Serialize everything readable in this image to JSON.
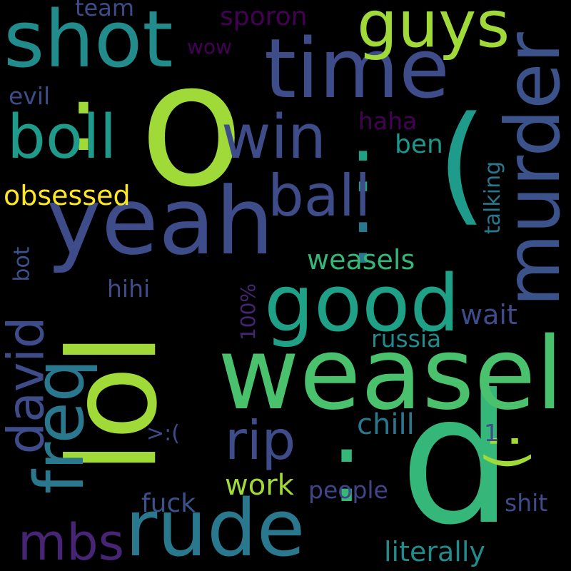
{
  "background": "#000000",
  "words": [
    {
      "id": "o",
      "text": "o",
      "color": "#a0da39"
    },
    {
      "id": "d",
      "text": "d",
      "color": "#35b779"
    },
    {
      "id": "lol",
      "text": "lol",
      "color": "#a0da39"
    },
    {
      "id": "weasel",
      "text": "weasel",
      "color": "#4ac16d"
    },
    {
      "id": "yeah",
      "text": "yeah",
      "color": "#3e4c8a"
    },
    {
      "id": "time",
      "text": "time",
      "color": "#3e4c8a"
    },
    {
      "id": "shot",
      "text": "shot",
      "color": "#228c8d"
    },
    {
      "id": "good",
      "text": "good",
      "color": "#1fa187"
    },
    {
      "id": "rude",
      "text": "rude",
      "color": "#2a788e"
    },
    {
      "id": "murder",
      "text": "murder",
      "color": "#3b528b"
    },
    {
      "id": "paren",
      "text": "(",
      "color": "#1e9b8a"
    },
    {
      "id": "colon1",
      "text": ":",
      "color": "#a0da39"
    },
    {
      "id": "colon2",
      "text": ":",
      "color": "#1fa187"
    },
    {
      "id": "colon3",
      "text": ":",
      "color": "#2a788e"
    },
    {
      "id": "colon4",
      "text": ":",
      "color": "#35b779"
    },
    {
      "id": "guys",
      "text": "guys",
      "color": "#a0da39"
    },
    {
      "id": "win",
      "text": "win",
      "color": "#3e4c8a"
    },
    {
      "id": "boll",
      "text": "boll",
      "color": "#1e9b8a"
    },
    {
      "id": "ball",
      "text": "ball",
      "color": "#3e4c8a"
    },
    {
      "id": "freq",
      "text": "freq",
      "color": "#2a788e"
    },
    {
      "id": "david",
      "text": "david",
      "color": "#3e4c8a"
    },
    {
      "id": "rip",
      "text": "rip",
      "color": "#3e4c8a"
    },
    {
      "id": "smile",
      "text": ":)",
      "color": "#a0da39"
    },
    {
      "id": "mbs",
      "text": "mbs",
      "color": "#482475"
    },
    {
      "id": "obsessed",
      "text": "obsessed",
      "color": "#fde725"
    },
    {
      "id": "weasels",
      "text": "weasels",
      "color": "#35b779"
    },
    {
      "id": "wait",
      "text": "wait",
      "color": "#3e4c8a"
    },
    {
      "id": "russia",
      "text": "russia",
      "color": "#228c8d"
    },
    {
      "id": "chill",
      "text": "chill",
      "color": "#2a788e"
    },
    {
      "id": "work",
      "text": "work",
      "color": "#a0da39"
    },
    {
      "id": "people",
      "text": "people",
      "color": "#414487"
    },
    {
      "id": "fuck",
      "text": "fuck",
      "color": "#3b528b"
    },
    {
      "id": "shit",
      "text": "shit",
      "color": "#3e4c8a"
    },
    {
      "id": "literally",
      "text": "literally",
      "color": "#228c8d"
    },
    {
      "id": "sporon",
      "text": "sporon",
      "color": "#440154"
    },
    {
      "id": "team",
      "text": "team",
      "color": "#3e4c8a"
    },
    {
      "id": "wow",
      "text": "wow",
      "color": "#440154"
    },
    {
      "id": "evil",
      "text": "evil",
      "color": "#3e4c8a"
    },
    {
      "id": "haha",
      "text": "haha",
      "color": "#440154"
    },
    {
      "id": "ben",
      "text": "ben",
      "color": "#1f968b"
    },
    {
      "id": "talking",
      "text": "talking",
      "color": "#2a788e"
    },
    {
      "id": "bot",
      "text": "bot",
      "color": "#3b528b"
    },
    {
      "id": "hihi",
      "text": "hihi",
      "color": "#3e4c8a"
    },
    {
      "id": "hundred",
      "text": "100%",
      "color": "#482475"
    },
    {
      "id": "frown",
      "text": ">:(",
      "color": "#3e4c8a"
    },
    {
      "id": "one",
      "text": "1",
      "color": "#3e4c8a"
    }
  ]
}
